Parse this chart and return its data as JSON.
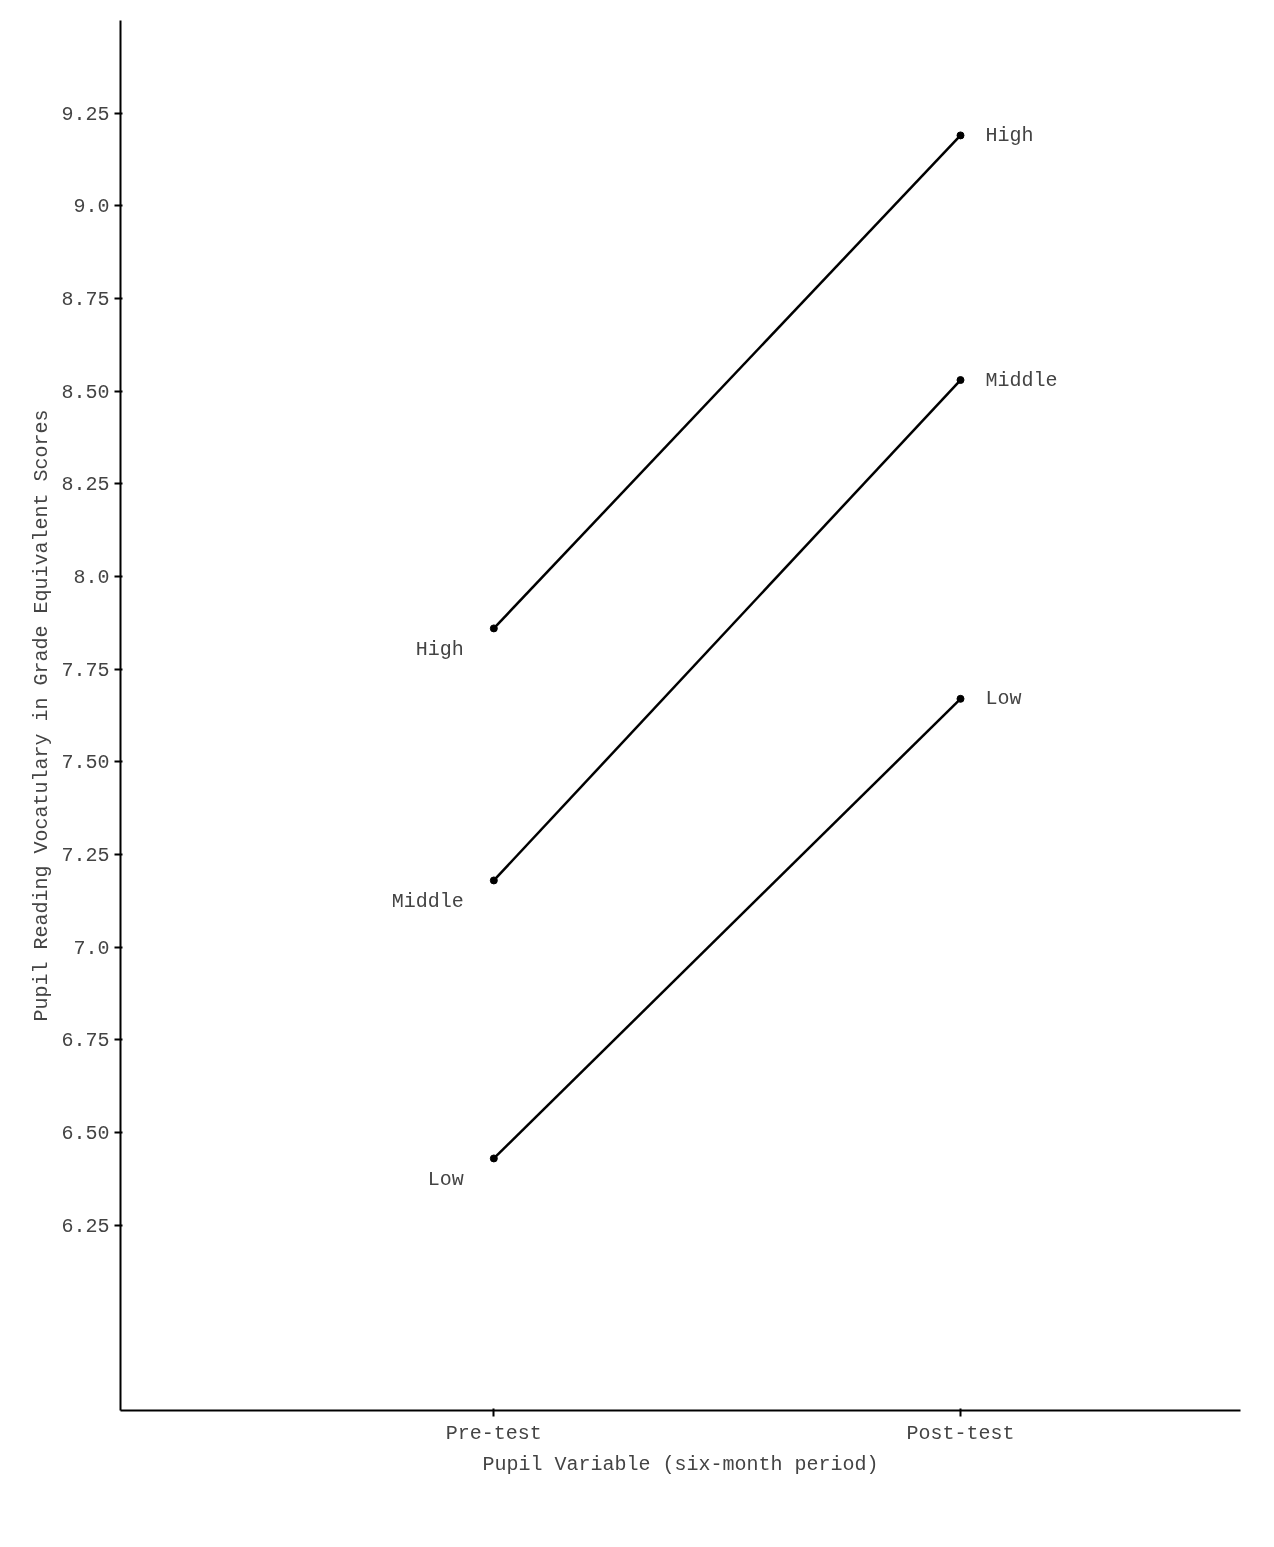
{
  "chart_data": {
    "type": "line",
    "xlabel": "Pupil Variable (six-month period)",
    "ylabel": "Pupil Reading Vocatulary in Grade Equivalent Scores",
    "categories": [
      "Pre-test",
      "Post-test"
    ],
    "series": [
      {
        "name": "High",
        "color": "#000000",
        "values": [
          7.86,
          9.19
        ]
      },
      {
        "name": "Middle",
        "color": "#000000",
        "values": [
          7.18,
          8.53
        ]
      },
      {
        "name": "Low",
        "color": "#000000",
        "values": [
          6.43,
          7.67
        ]
      }
    ],
    "ylim": [
      5.75,
      9.5
    ],
    "yticks": [
      6.25,
      {
        "value": 6.5,
        "label": "6.50"
      },
      6.75,
      {
        "value": 7.0,
        "label": "7.0"
      },
      7.25,
      {
        "value": 7.5,
        "label": "7.50"
      },
      7.75,
      {
        "value": 8.0,
        "label": "8.0"
      },
      8.25,
      {
        "value": 8.5,
        "label": "8.50"
      },
      8.75,
      {
        "value": 9.0,
        "label": "9.0"
      },
      9.25
    ],
    "grid": false,
    "marker": "circle",
    "line_style": "solid"
  }
}
